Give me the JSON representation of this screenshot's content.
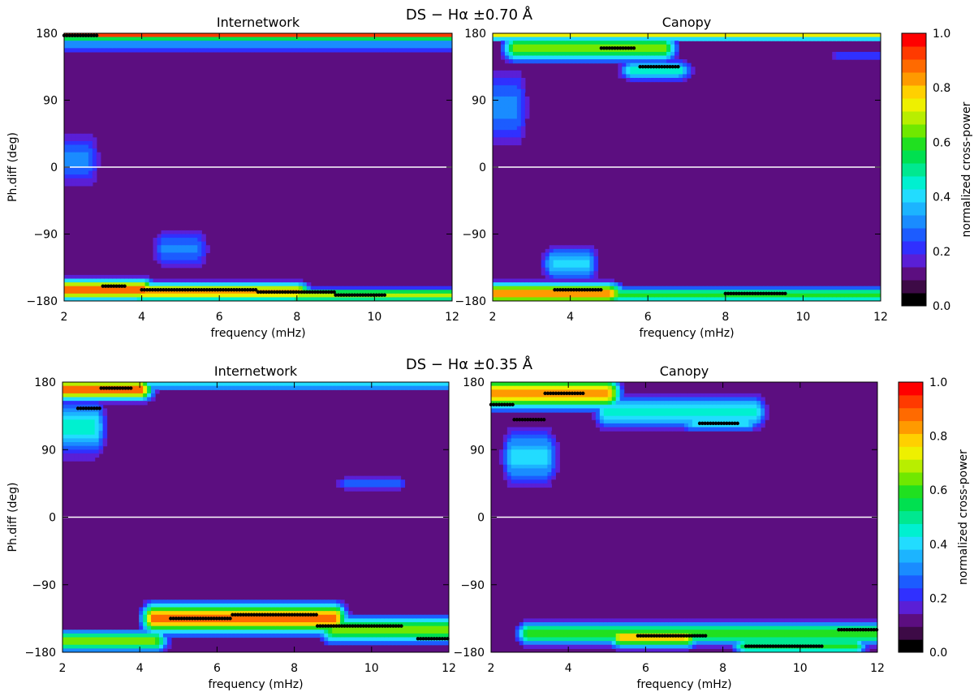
{
  "figure": {
    "rows": [
      {
        "title": "DS − Hα ±0.70 Å"
      },
      {
        "title": "DS − Hα ±0.35 Å"
      }
    ]
  },
  "colorbar": {
    "label": "normalized cross-power",
    "ticks": [
      "0.0",
      "0.2",
      "0.4",
      "0.6",
      "0.8",
      "1.0"
    ],
    "levels": [
      "#000000",
      "#3d0a46",
      "#5c0e80",
      "#5a1fd6",
      "#3030ff",
      "#1c5cff",
      "#1a8cff",
      "#1cb4ff",
      "#22dcff",
      "#00f0d0",
      "#00e890",
      "#00e050",
      "#20e020",
      "#70e800",
      "#b8ee00",
      "#eef000",
      "#ffd000",
      "#ff9a00",
      "#ff6a00",
      "#ff3a00",
      "#ff0000"
    ]
  },
  "chart_data": [
    {
      "type": "heatmap",
      "panel": "top-left",
      "title": "Internetwork",
      "xlabel": "frequency (mHz)",
      "ylabel": "Ph.diff (deg)",
      "xlim": [
        2,
        12
      ],
      "ylim": [
        -180,
        180
      ],
      "xticks": [
        "2",
        "4",
        "6",
        "8",
        "10",
        "12"
      ],
      "yticks": [
        "180",
        "90",
        "0",
        "−90",
        "−180"
      ],
      "zlim": [
        0,
        1
      ],
      "background_value": 0.1,
      "zero_line": true,
      "features": [
        {
          "f": [
            2.0,
            12.0
          ],
          "phi": 177,
          "sd": 6,
          "amp": 0.95
        },
        {
          "f": [
            2.0,
            12.0
          ],
          "phi": 165,
          "sd": 10,
          "amp": 0.35
        },
        {
          "f": [
            2.0,
            4.0
          ],
          "phi": -165,
          "sd": 14,
          "amp": 0.9
        },
        {
          "f": [
            4.0,
            8.0
          ],
          "phi": -168,
          "sd": 12,
          "amp": 0.85
        },
        {
          "f": [
            8.0,
            12.0
          ],
          "phi": -172,
          "sd": 9,
          "amp": 0.7
        },
        {
          "f": [
            4.6,
            5.4
          ],
          "phi": -110,
          "sd": 30,
          "amp": 0.3
        },
        {
          "f": [
            2.0,
            2.6
          ],
          "phi": 10,
          "sd": 40,
          "amp": 0.3
        }
      ],
      "ridge": [
        {
          "f": [
            2.0,
            2.9
          ],
          "phi": 177
        },
        {
          "f": [
            3.0,
            3.6
          ],
          "phi": -160
        },
        {
          "f": [
            4.0,
            7.0
          ],
          "phi": -165
        },
        {
          "f": [
            7.0,
            9.0
          ],
          "phi": -168
        },
        {
          "f": [
            9.0,
            10.3
          ],
          "phi": -172
        }
      ]
    },
    {
      "type": "heatmap",
      "panel": "top-right",
      "title": "Canopy",
      "xlabel": "frequency (mHz)",
      "ylabel": "",
      "xlim": [
        2,
        12
      ],
      "ylim": [
        -180,
        180
      ],
      "xticks": [
        "2",
        "4",
        "6",
        "8",
        "10",
        "12"
      ],
      "yticks": [
        "180",
        "90",
        "0",
        "−90",
        "−180"
      ],
      "zlim": [
        0,
        1
      ],
      "background_value": 0.1,
      "zero_line": true,
      "features": [
        {
          "f": [
            2.0,
            12.0
          ],
          "phi": 177,
          "sd": 6,
          "amp": 0.75
        },
        {
          "f": [
            2.6,
            6.4
          ],
          "phi": 160,
          "sd": 18,
          "amp": 0.65
        },
        {
          "f": [
            5.6,
            6.8
          ],
          "phi": 130,
          "sd": 14,
          "amp": 0.45
        },
        {
          "f": [
            2.0,
            2.6
          ],
          "phi": 80,
          "sd": 60,
          "amp": 0.3
        },
        {
          "f": [
            2.0,
            5.0
          ],
          "phi": -170,
          "sd": 14,
          "amp": 0.85
        },
        {
          "f": [
            5.0,
            12.0
          ],
          "phi": -172,
          "sd": 10,
          "amp": 0.6
        },
        {
          "f": [
            3.6,
            4.4
          ],
          "phi": -130,
          "sd": 25,
          "amp": 0.4
        },
        {
          "f": [
            11.0,
            12.0
          ],
          "phi": 150,
          "sd": 8,
          "amp": 0.25
        }
      ],
      "ridge": [
        {
          "f": [
            4.8,
            5.7
          ],
          "phi": 160
        },
        {
          "f": [
            5.8,
            6.8
          ],
          "phi": 135
        },
        {
          "f": [
            3.6,
            4.8
          ],
          "phi": -165
        },
        {
          "f": [
            8.0,
            9.6
          ],
          "phi": -170
        }
      ]
    },
    {
      "type": "heatmap",
      "panel": "bottom-left",
      "title": "Internetwork",
      "xlabel": "frequency (mHz)",
      "ylabel": "Ph.diff (deg)",
      "xlim": [
        2,
        12
      ],
      "ylim": [
        -180,
        180
      ],
      "xticks": [
        "2",
        "4",
        "6",
        "8",
        "10",
        "12"
      ],
      "yticks": [
        "180",
        "90",
        "0",
        "−90",
        "−180"
      ],
      "zlim": [
        0,
        1
      ],
      "background_value": 0.1,
      "zero_line": true,
      "features": [
        {
          "f": [
            2.0,
            4.0
          ],
          "phi": 170,
          "sd": 14,
          "amp": 0.9
        },
        {
          "f": [
            2.0,
            2.8
          ],
          "phi": 120,
          "sd": 40,
          "amp": 0.45
        },
        {
          "f": [
            4.0,
            12.0
          ],
          "phi": 176,
          "sd": 6,
          "amp": 0.45
        },
        {
          "f": [
            4.4,
            9.0
          ],
          "phi": -135,
          "sd": 20,
          "amp": 0.9
        },
        {
          "f": [
            9.0,
            12.0
          ],
          "phi": -150,
          "sd": 18,
          "amp": 0.65
        },
        {
          "f": [
            2.0,
            4.4
          ],
          "phi": -165,
          "sd": 14,
          "amp": 0.65
        },
        {
          "f": [
            9.4,
            10.6
          ],
          "phi": 45,
          "sd": 10,
          "amp": 0.3
        }
      ],
      "ridge": [
        {
          "f": [
            2.4,
            3.0
          ],
          "phi": 145
        },
        {
          "f": [
            3.0,
            3.8
          ],
          "phi": 172
        },
        {
          "f": [
            4.8,
            6.4
          ],
          "phi": -135
        },
        {
          "f": [
            6.4,
            8.6
          ],
          "phi": -130
        },
        {
          "f": [
            8.6,
            10.8
          ],
          "phi": -145
        },
        {
          "f": [
            11.2,
            12.0
          ],
          "phi": -162
        }
      ]
    },
    {
      "type": "heatmap",
      "panel": "bottom-right",
      "title": "Canopy",
      "xlabel": "frequency (mHz)",
      "ylabel": "",
      "xlim": [
        2,
        12
      ],
      "ylim": [
        -180,
        180
      ],
      "xticks": [
        "2",
        "4",
        "6",
        "8",
        "10",
        "12"
      ],
      "yticks": [
        "180",
        "90",
        "0",
        "−90",
        "−180"
      ],
      "zlim": [
        0,
        1
      ],
      "background_value": 0.1,
      "zero_line": true,
      "features": [
        {
          "f": [
            2.0,
            5.0
          ],
          "phi": 165,
          "sd": 20,
          "amp": 0.85
        },
        {
          "f": [
            2.6,
            3.4
          ],
          "phi": 80,
          "sd": 40,
          "amp": 0.4
        },
        {
          "f": [
            5.0,
            8.8
          ],
          "phi": 140,
          "sd": 24,
          "amp": 0.45
        },
        {
          "f": [
            7.2,
            8.6
          ],
          "phi": 125,
          "sd": 12,
          "amp": 0.4
        },
        {
          "f": [
            3.0,
            12.0
          ],
          "phi": -155,
          "sd": 16,
          "amp": 0.6
        },
        {
          "f": [
            5.4,
            7.0
          ],
          "phi": -160,
          "sd": 14,
          "amp": 0.8
        },
        {
          "f": [
            8.6,
            11.4
          ],
          "phi": -172,
          "sd": 10,
          "amp": 0.6
        }
      ],
      "ridge": [
        {
          "f": [
            2.0,
            2.6
          ],
          "phi": 150
        },
        {
          "f": [
            2.6,
            3.4
          ],
          "phi": 130
        },
        {
          "f": [
            3.4,
            4.4
          ],
          "phi": 165
        },
        {
          "f": [
            7.4,
            8.4
          ],
          "phi": 125
        },
        {
          "f": [
            5.8,
            7.6
          ],
          "phi": -158
        },
        {
          "f": [
            8.6,
            10.6
          ],
          "phi": -172
        },
        {
          "f": [
            11.0,
            12.0
          ],
          "phi": -150
        }
      ]
    }
  ]
}
